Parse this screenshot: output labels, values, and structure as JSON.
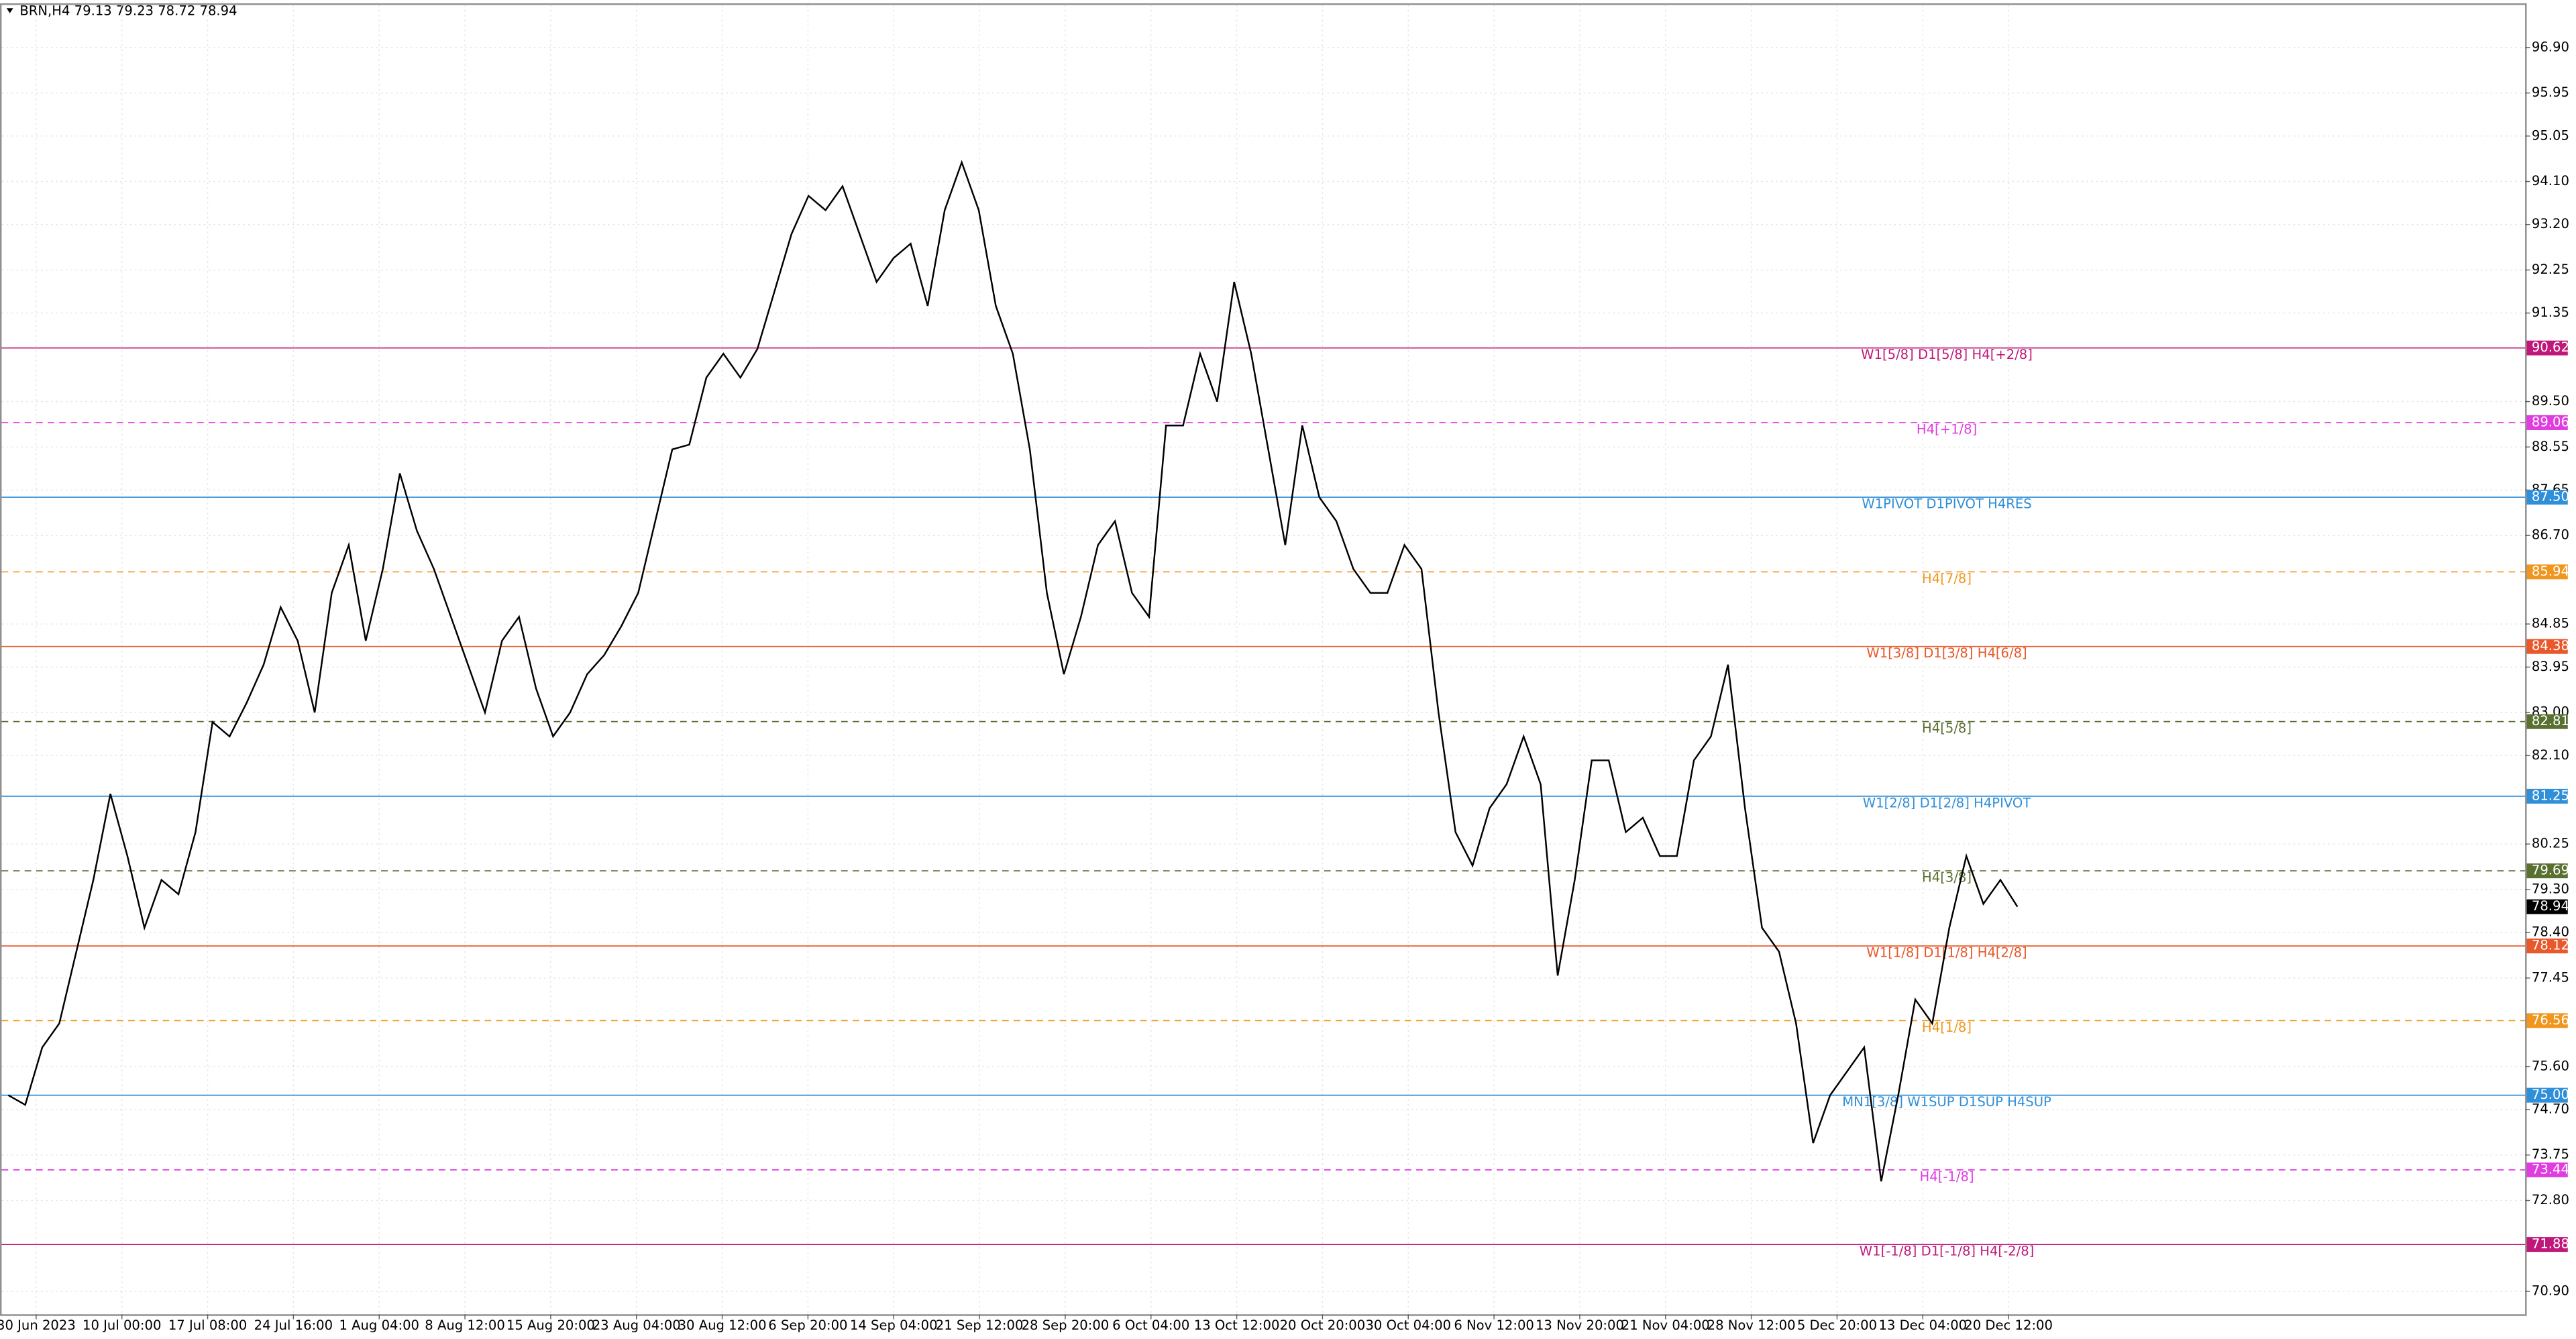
{
  "chart_data": {
    "type": "line",
    "title": "BRN,H4  79.13 79.23 78.72 78.94",
    "x_labels": [
      "30 Jun 2023",
      "10 Jul 00:00",
      "17 Jul 08:00",
      "24 Jul 16:00",
      "1 Aug 04:00",
      "8 Aug 12:00",
      "15 Aug 20:00",
      "23 Aug 04:00",
      "30 Aug 12:00",
      "6 Sep 20:00",
      "14 Sep 04:00",
      "21 Sep 12:00",
      "28 Sep 20:00",
      "6 Oct 04:00",
      "13 Oct 12:00",
      "20 Oct 20:00",
      "30 Oct 04:00",
      "6 Nov 12:00",
      "13 Nov 20:00",
      "21 Nov 04:00",
      "28 Nov 12:00",
      "5 Dec 20:00",
      "13 Dec 04:00",
      "20 Dec 12:00"
    ],
    "values": [
      75.0,
      74.8,
      76.0,
      76.5,
      78.0,
      79.5,
      81.3,
      80.0,
      78.5,
      79.5,
      79.2,
      80.5,
      82.8,
      82.5,
      83.2,
      84.0,
      85.2,
      84.5,
      83.0,
      85.5,
      86.5,
      84.5,
      86.0,
      88.0,
      86.8,
      86.0,
      85.0,
      84.0,
      83.0,
      84.5,
      85.0,
      83.5,
      82.5,
      83.0,
      83.8,
      84.2,
      84.8,
      85.5,
      87.0,
      88.5,
      88.6,
      90.0,
      90.5,
      90.0,
      90.6,
      91.8,
      93.0,
      93.8,
      93.5,
      94.0,
      93.0,
      92.0,
      92.5,
      92.8,
      91.5,
      93.5,
      94.5,
      93.5,
      91.5,
      90.5,
      88.5,
      85.5,
      83.8,
      85.0,
      86.5,
      87.0,
      85.5,
      85.0,
      89.0,
      89.0,
      90.5,
      89.5,
      92.0,
      90.5,
      88.5,
      86.5,
      89.0,
      87.5,
      87.0,
      86.0,
      85.5,
      85.5,
      86.5,
      86.0,
      83.0,
      80.5,
      79.8,
      81.0,
      81.5,
      82.5,
      81.5,
      77.5,
      79.5,
      82.0,
      82.0,
      80.5,
      80.8,
      80.0,
      80.0,
      82.0,
      82.5,
      84.0,
      81.0,
      78.5,
      78.0,
      76.5,
      74.0,
      75.0,
      75.5,
      76.0,
      73.2,
      75.0,
      77.0,
      76.5,
      78.5,
      80.0,
      79.0,
      79.5,
      78.94
    ],
    "color": "#000000",
    "ylim": [
      70.42,
      97.79
    ],
    "yticks": [
      {
        "value": 96.9,
        "label": "96.90"
      },
      {
        "value": 95.95,
        "label": "95.95"
      },
      {
        "value": 95.05,
        "label": "95.05"
      },
      {
        "value": 94.1,
        "label": "94.10"
      },
      {
        "value": 93.2,
        "label": "93.20"
      },
      {
        "value": 92.25,
        "label": "92.25"
      },
      {
        "value": 91.35,
        "label": "91.35"
      },
      {
        "value": 89.5,
        "label": "89.50"
      },
      {
        "value": 88.55,
        "label": "88.55"
      },
      {
        "value": 87.65,
        "label": "87.65"
      },
      {
        "value": 86.7,
        "label": "86.70"
      },
      {
        "value": 84.85,
        "label": "84.85"
      },
      {
        "value": 83.95,
        "label": "83.95"
      },
      {
        "value": 83.0,
        "label": "83.00"
      },
      {
        "value": 82.1,
        "label": "82.10"
      },
      {
        "value": 80.25,
        "label": "80.25"
      },
      {
        "value": 79.3,
        "label": "79.30"
      },
      {
        "value": 78.4,
        "label": "78.40"
      },
      {
        "value": 77.45,
        "label": "77.45"
      },
      {
        "value": 75.6,
        "label": "75.60"
      },
      {
        "value": 74.7,
        "label": "74.70"
      },
      {
        "value": 73.75,
        "label": "73.75"
      },
      {
        "value": 72.8,
        "label": "72.80"
      },
      {
        "value": 70.9,
        "label": "70.90"
      }
    ],
    "grid": true,
    "last_price": 78.94,
    "levels": [
      {
        "name": "W1[5/8] D1[5/8] H4[+2/8]",
        "value": 90.62,
        "tag": "90.62",
        "color": "#c0187a",
        "dashed": false
      },
      {
        "name": "H4[+1/8]",
        "value": 89.06,
        "tag": "89.06",
        "color": "#e03ce0",
        "dashed": true
      },
      {
        "name": "W1PIVOT D1PIVOT H4RES",
        "value": 87.5,
        "tag": "87.50",
        "color": "#2f8fd8",
        "dashed": false
      },
      {
        "name": "H4[7/8]",
        "value": 85.94,
        "tag": "85.94",
        "color": "#f0961e",
        "dashed": true
      },
      {
        "name": "W1[3/8] D1[3/8] H4[6/8]",
        "value": 84.38,
        "tag": "84.38",
        "color": "#e8582a",
        "dashed": false
      },
      {
        "name": "H4[5/8]",
        "value": 82.81,
        "tag": "82.81",
        "color": "#5a7030",
        "dashed": true
      },
      {
        "name": "W1[2/8] D1[2/8] H4PIVOT",
        "value": 81.25,
        "tag": "81.25",
        "color": "#2f8fd8",
        "dashed": false
      },
      {
        "name": "H4[3/8]",
        "value": 79.69,
        "tag": "79.69",
        "color": "#5a7030",
        "dashed": true
      },
      {
        "name": "W1[1/8] D1[1/8] H4[2/8]",
        "value": 78.12,
        "tag": "78.12",
        "color": "#e8582a",
        "dashed": false
      },
      {
        "name": "H4[1/8]",
        "value": 76.56,
        "tag": "76.56",
        "color": "#f0961e",
        "dashed": true
      },
      {
        "name": "MN1[3/8] W1SUP D1SUP H4SUP",
        "value": 75.0,
        "tag": "75.00",
        "color": "#2f8fd8",
        "dashed": false
      },
      {
        "name": "H4[-1/8]",
        "value": 73.44,
        "tag": "73.44",
        "color": "#e03ce0",
        "dashed": true
      },
      {
        "name": "W1[-1/8] D1[-1/8] H4[-2/8]",
        "value": 71.88,
        "tag": "71.88",
        "color": "#c0187a",
        "dashed": false
      }
    ]
  }
}
